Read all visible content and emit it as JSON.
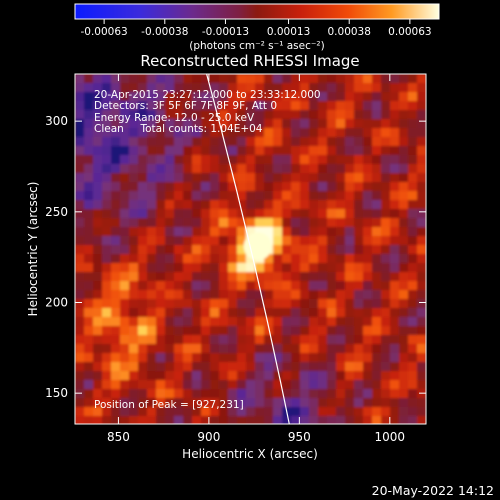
{
  "chart_data": {
    "type": "heatmap",
    "title": "Reconstructed RHESSI Image",
    "xlabel": "Heliocentric X (arcsec)",
    "ylabel": "Heliocentric Y (arcsec)",
    "xlim": [
      826,
      1020
    ],
    "ylim": [
      133,
      326
    ],
    "xticks": [
      "850",
      "900",
      "950",
      "1000"
    ],
    "yticks": [
      "150",
      "200",
      "250",
      "300"
    ],
    "colorbar": {
      "range": [
        -0.00075,
        0.00075
      ],
      "ticks": [
        "-0.00063",
        "-0.00038",
        "-0.00013",
        "0.00013",
        "0.00038",
        "0.00063"
      ],
      "unit_label": "(photons cm⁻² s⁻¹ asec⁻²)"
    },
    "annotations": [
      "20-Apr-2015 23:27:12.000 to 23:33:12.000",
      "Detectors: 3F 5F 6F 7F 8F 9F, Att 0",
      "Energy Range: 12.0 - 25.0 keV",
      "Clean     Total counts: 1.04E+04"
    ],
    "peak_label": "Position of Peak = [927,231]",
    "peak": [
      927,
      231
    ],
    "limb": {
      "x_top": 898,
      "x_bottom": 945
    }
  },
  "footer_date": "20-May-2022 14:12"
}
